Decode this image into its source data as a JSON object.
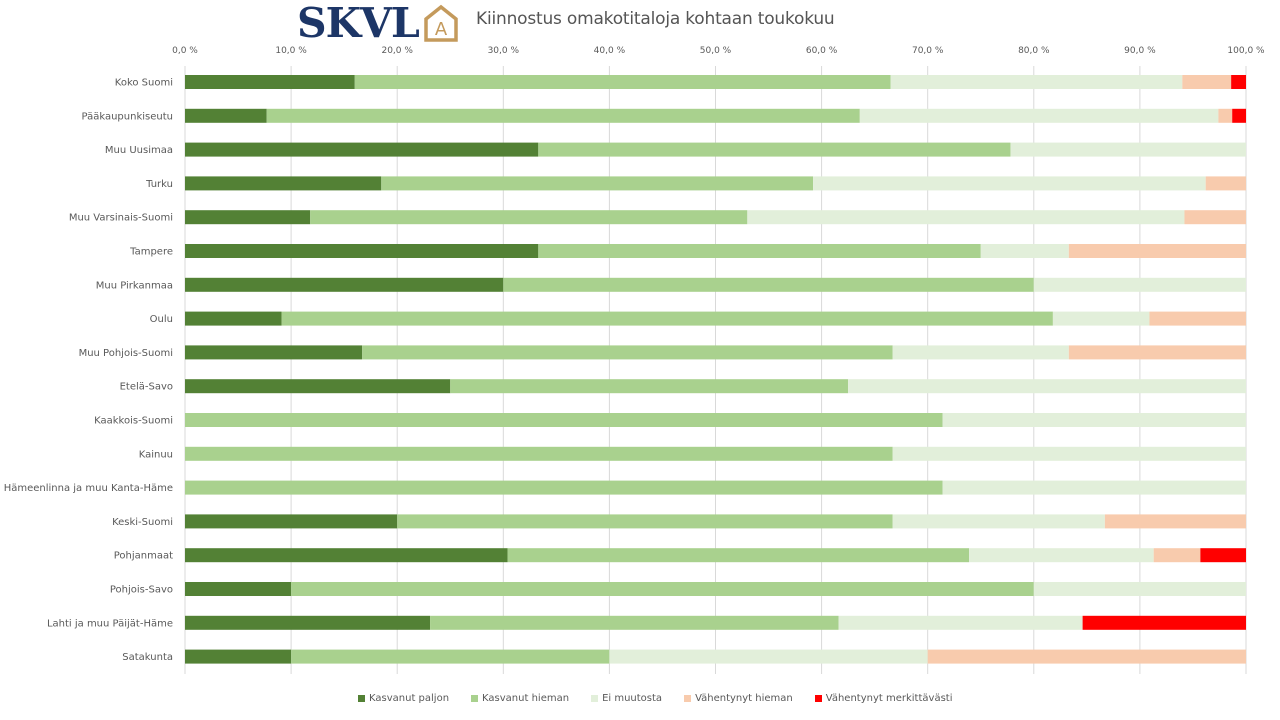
{
  "header": {
    "logo_text": "SKVL",
    "logo_mark_letter": "A",
    "brand_color": "#1d3667",
    "brand_accent": "#c49a5c"
  },
  "chart_data": {
    "type": "bar",
    "orientation": "horizontal",
    "stacked": "percent",
    "title": "Kiinnostus omakotitaloja kohtaan toukokuu",
    "xlabel": "",
    "ylabel": "",
    "xlim": [
      0,
      100
    ],
    "x_ticks": [
      "0,0 %",
      "10,0 %",
      "20,0 %",
      "30,0 %",
      "40,0 %",
      "50,0 %",
      "60,0 %",
      "70,0 %",
      "80,0 %",
      "90,0 %",
      "100,0 %"
    ],
    "x_axis_position": "top",
    "grid": true,
    "legend_position": "bottom",
    "categories": [
      "Koko Suomi",
      "Pääkaupunkiseutu",
      "Muu Uusimaa",
      "Turku",
      "Muu Varsinais-Suomi",
      "Tampere",
      "Muu Pirkanmaa",
      "Oulu",
      "Muu Pohjois-Suomi",
      "Etelä-Savo",
      "Kaakkois-Suomi",
      "Kainuu",
      "Hämeenlinna ja muu Kanta-Häme",
      "Keski-Suomi",
      "Pohjanmaat",
      "Pohjois-Savo",
      "Lahti ja muu Päijät-Häme",
      "Satakunta"
    ],
    "series": [
      {
        "name": "Kasvanut paljon",
        "color": "#538135",
        "values": [
          16.0,
          7.7,
          33.3,
          18.5,
          11.8,
          33.3,
          30.0,
          9.1,
          16.7,
          25.0,
          0.0,
          0.0,
          0.0,
          20.0,
          30.4,
          10.0,
          23.1,
          10.0
        ]
      },
      {
        "name": "Kasvanut hieman",
        "color": "#a9d18e",
        "values": [
          50.5,
          55.9,
          44.5,
          40.7,
          41.2,
          41.7,
          50.0,
          72.7,
          50.0,
          37.5,
          71.4,
          66.7,
          71.4,
          46.7,
          43.5,
          70.0,
          38.5,
          30.0
        ]
      },
      {
        "name": "Ei muutosta",
        "color": "#e2efda",
        "values": [
          27.5,
          33.8,
          22.2,
          37.0,
          41.2,
          8.3,
          20.0,
          9.1,
          16.6,
          37.5,
          28.6,
          33.3,
          28.6,
          20.0,
          17.4,
          20.0,
          23.0,
          30.0
        ]
      },
      {
        "name": "Vähentynyt hieman",
        "color": "#f8cbad",
        "values": [
          4.6,
          1.3,
          0.0,
          3.8,
          5.8,
          16.7,
          0.0,
          9.1,
          16.7,
          0.0,
          0.0,
          0.0,
          0.0,
          13.3,
          4.4,
          0.0,
          0.0,
          30.0
        ]
      },
      {
        "name": "Vähentynyt merkittävästi",
        "color": "#ff0000",
        "values": [
          1.4,
          1.3,
          0.0,
          0.0,
          0.0,
          0.0,
          0.0,
          0.0,
          0.0,
          0.0,
          0.0,
          0.0,
          0.0,
          0.0,
          4.3,
          0.0,
          15.4,
          0.0
        ]
      }
    ]
  }
}
